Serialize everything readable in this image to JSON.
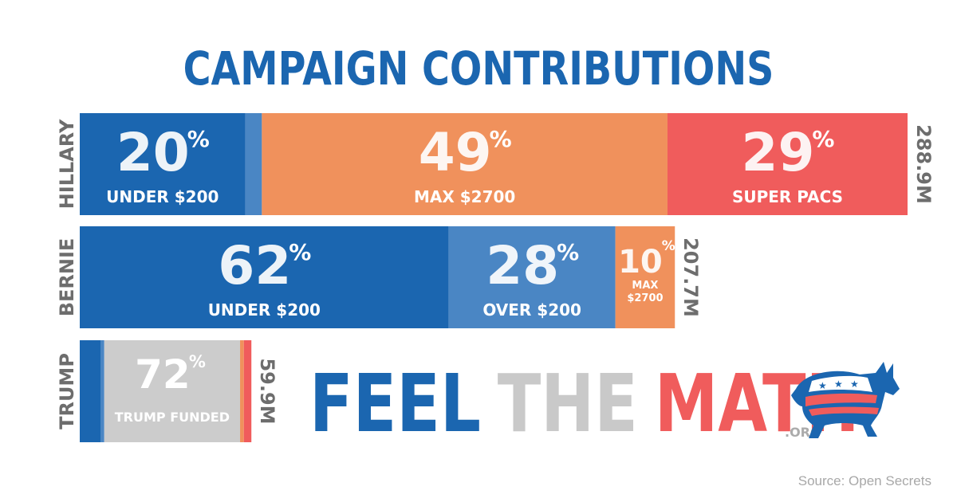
{
  "title": "CAMPAIGN CONTRIBUTIONS",
  "colors": {
    "title": "#1b66b0",
    "dark_blue": "#1b66b0",
    "mid_blue": "#4a86c4",
    "orange": "#f0915c",
    "red": "#f05c5c",
    "gray": "#cccccc",
    "label_gray": "#6d6d6d"
  },
  "chart_data": {
    "type": "bar",
    "orientation": "horizontal-stacked",
    "candidates": [
      {
        "name": "HILLARY",
        "total": "288.9M",
        "total_value": 288.9,
        "segments": [
          {
            "pct": "20",
            "label": "UNDER $200",
            "share": 20,
            "color": "#1b66b0"
          },
          {
            "pct": "",
            "label": "",
            "share": 2,
            "color": "#4a86c4"
          },
          {
            "pct": "49",
            "label": "MAX $2700",
            "share": 49,
            "color": "#f0915c"
          },
          {
            "pct": "29",
            "label": "SUPER PACS",
            "share": 29,
            "color": "#f05c5c"
          }
        ]
      },
      {
        "name": "BERNIE",
        "total": "207.7M",
        "total_value": 207.7,
        "segments": [
          {
            "pct": "62",
            "label": "UNDER $200",
            "share": 62,
            "color": "#1b66b0"
          },
          {
            "pct": "28",
            "label": "OVER $200",
            "share": 28,
            "color": "#4a86c4"
          },
          {
            "pct": "10",
            "label": "MAX $2700",
            "share": 10,
            "color": "#f0915c"
          }
        ]
      },
      {
        "name": "TRUMP",
        "total": "59.9M",
        "total_value": 59.9,
        "segments": [
          {
            "pct": "",
            "label": "",
            "share": 11,
            "color": "#1b66b0"
          },
          {
            "pct": "",
            "label": "",
            "share": 2,
            "color": "#4a86c4"
          },
          {
            "pct": "72",
            "label": "TRUMP FUNDED",
            "share": 72,
            "color": "#cccccc"
          },
          {
            "pct": "",
            "label": "",
            "share": 2,
            "color": "#f0915c"
          },
          {
            "pct": "",
            "label": "",
            "share": 4,
            "color": "#f05c5c"
          }
        ]
      }
    ],
    "percent_sign": "%"
  },
  "logo": {
    "word1": "FEEL",
    "word2": "THE",
    "word3": "MATH",
    "suffix": ".ORG"
  },
  "source": "Source: Open Secrets"
}
